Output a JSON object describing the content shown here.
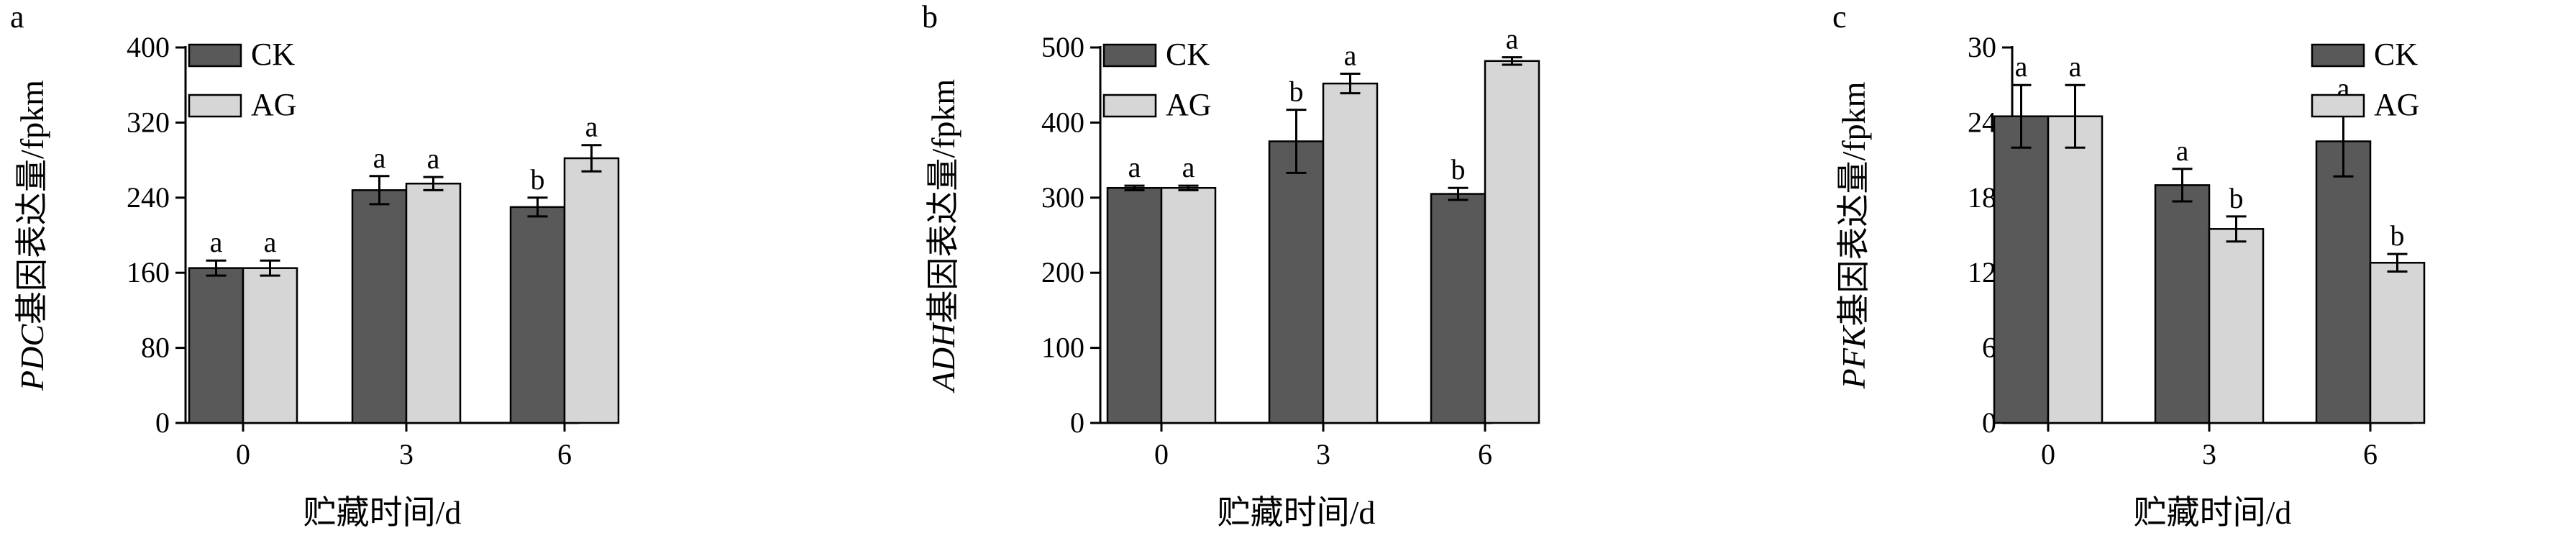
{
  "colors": {
    "ck": "#595959",
    "ag": "#d6d6d6",
    "axis": "#000000"
  },
  "chart_data": [
    {
      "panel_letter": "a",
      "type": "bar",
      "ylabel_gene": "PDC",
      "ylabel_rest": "基因表达量/fpkm",
      "xlabel": "贮藏时间/d",
      "categories": [
        "0",
        "3",
        "6"
      ],
      "ylim": [
        0,
        400
      ],
      "yticks": [
        "0",
        "80",
        "160",
        "240",
        "320",
        "400"
      ],
      "legend_position": "top-left",
      "series": [
        {
          "name": "CK",
          "values": [
            165,
            248,
            230
          ],
          "errors": [
            8,
            15,
            10
          ],
          "letters": [
            "a",
            "a",
            "b"
          ]
        },
        {
          "name": "AG",
          "values": [
            165,
            255,
            282
          ],
          "errors": [
            8,
            7,
            14
          ],
          "letters": [
            "a",
            "a",
            "a"
          ]
        }
      ]
    },
    {
      "panel_letter": "b",
      "type": "bar",
      "ylabel_gene": "ADH",
      "ylabel_rest": "基因表达量/fpkm",
      "xlabel": "贮藏时间/d",
      "categories": [
        "0",
        "3",
        "6"
      ],
      "ylim": [
        0,
        500
      ],
      "yticks": [
        "0",
        "100",
        "200",
        "300",
        "400",
        "500"
      ],
      "legend_position": "top-left",
      "series": [
        {
          "name": "CK",
          "values": [
            313,
            375,
            305
          ],
          "errors": [
            3,
            42,
            8
          ],
          "letters": [
            "a",
            "b",
            "b"
          ]
        },
        {
          "name": "AG",
          "values": [
            313,
            452,
            482
          ],
          "errors": [
            3,
            13,
            5
          ],
          "letters": [
            "a",
            "a",
            "a"
          ]
        }
      ]
    },
    {
      "panel_letter": "c",
      "type": "bar",
      "ylabel_gene": "PFK",
      "ylabel_rest": "基因表达量/fpkm",
      "xlabel": "贮藏时间/d",
      "categories": [
        "0",
        "3",
        "6"
      ],
      "ylim": [
        0,
        30
      ],
      "yticks": [
        "0",
        "6",
        "12",
        "18",
        "24",
        "30"
      ],
      "legend_position": "top-right",
      "series": [
        {
          "name": "CK",
          "values": [
            24.5,
            19.0,
            22.5
          ],
          "errors": [
            2.5,
            1.3,
            2.8
          ],
          "letters": [
            "a",
            "a",
            "a"
          ]
        },
        {
          "name": "AG",
          "values": [
            24.5,
            15.5,
            12.8
          ],
          "errors": [
            2.5,
            1.0,
            0.7
          ],
          "letters": [
            "a",
            "b",
            "b"
          ]
        }
      ]
    }
  ]
}
